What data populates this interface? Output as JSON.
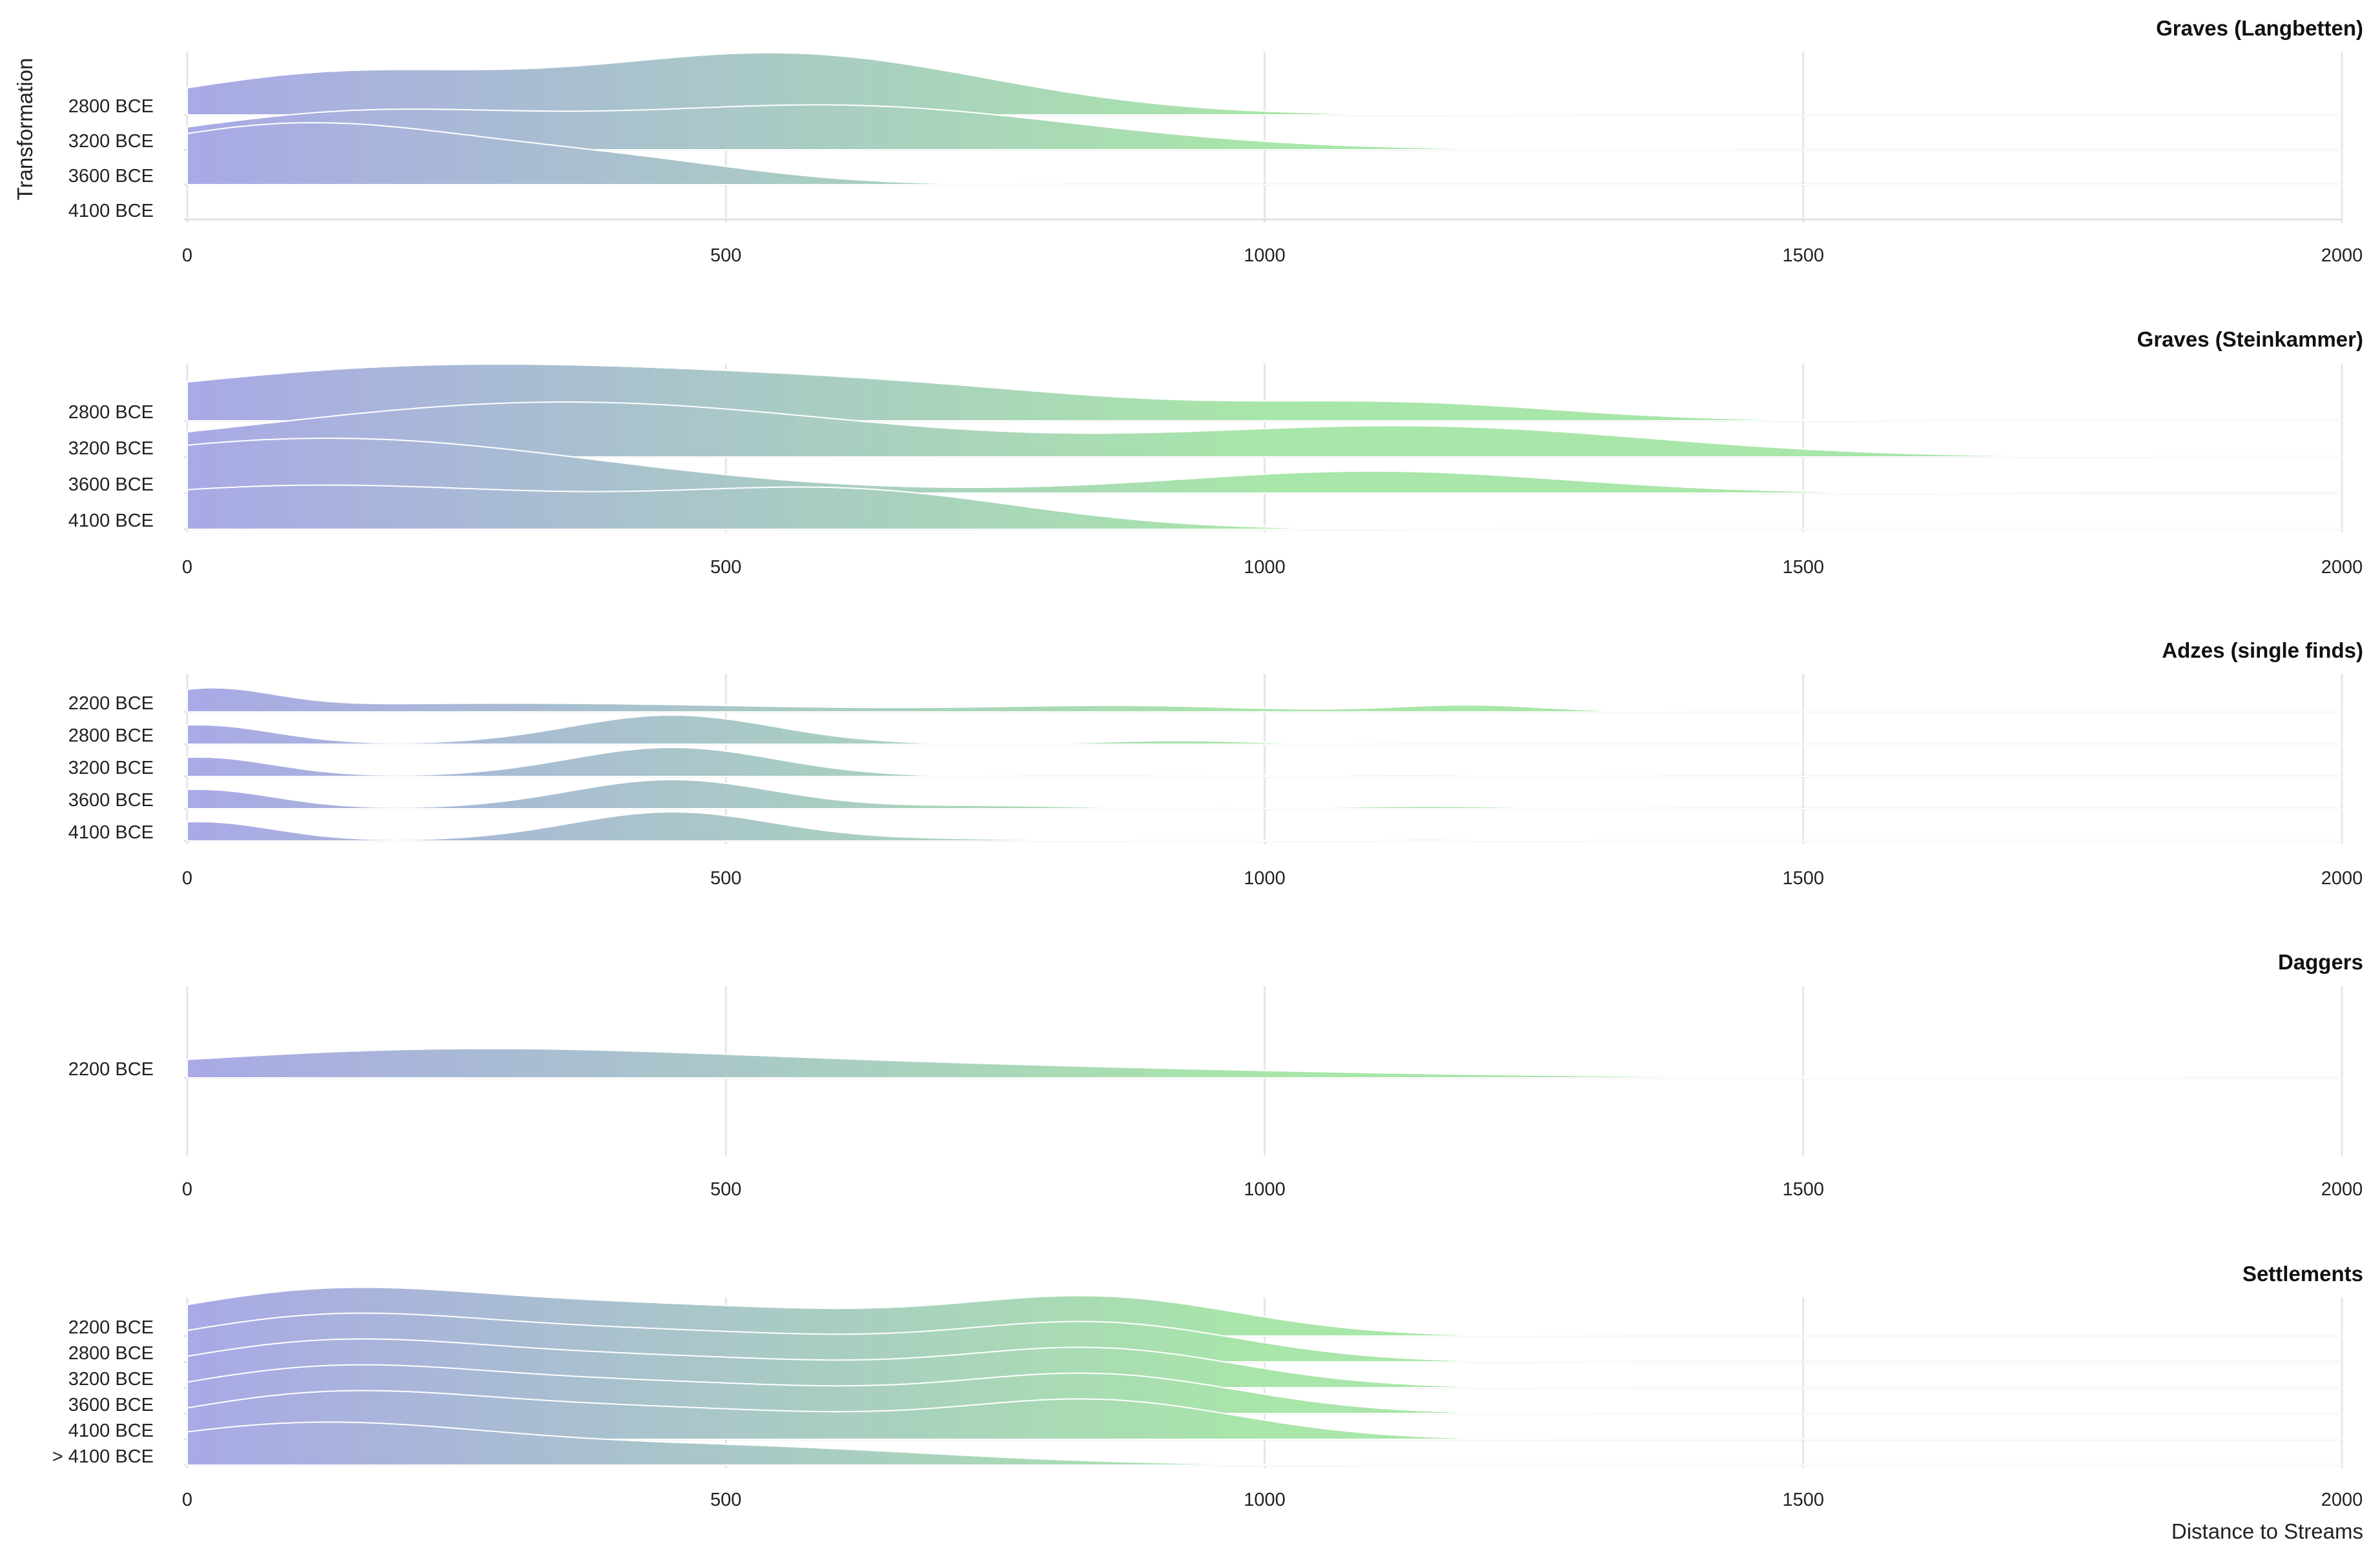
{
  "chart_data": {
    "type": "ridgeline",
    "ylabel": "Transformation",
    "xlabel": "Distance to Streams",
    "xlim": [
      0,
      2000
    ],
    "xticks": [
      0,
      500,
      1000,
      1500,
      2000
    ],
    "gradient": {
      "low": "#a9a9e6",
      "high": "#a9e6a9"
    },
    "panels": [
      {
        "title": "Graves (Langbetten)",
        "series": [
          {
            "name": "2800 BCE",
            "peaks": [
              [
                130,
                150,
                0.62
              ],
              [
                550,
                190,
                1.0
              ]
            ]
          },
          {
            "name": "3200 BCE",
            "peaks": [
              [
                150,
                160,
                0.55
              ],
              [
                600,
                220,
                0.72
              ]
            ]
          },
          {
            "name": "3600 BCE",
            "peaks": [
              [
                110,
                180,
                1.0
              ],
              [
                420,
                120,
                0.25
              ]
            ]
          },
          {
            "name": "4100 BCE",
            "peaks": []
          }
        ]
      },
      {
        "title": "Graves (Steinkammer)",
        "series": [
          {
            "name": "2800 BCE",
            "peaks": [
              [
                250,
                300,
                1.0
              ],
              [
                700,
                200,
                0.35
              ],
              [
                1130,
                150,
                0.3
              ]
            ]
          },
          {
            "name": "3200 BCE",
            "peaks": [
              [
                350,
                280,
                1.0
              ],
              [
                1140,
                220,
                0.55
              ]
            ]
          },
          {
            "name": "3600 BCE",
            "peaks": [
              [
                130,
                250,
                1.0
              ],
              [
                1100,
                180,
                0.4
              ]
            ]
          },
          {
            "name": "4100 BCE",
            "peaks": [
              [
                120,
                260,
                0.8
              ],
              [
                620,
                160,
                0.62
              ]
            ]
          }
        ]
      },
      {
        "title": "Adzes (single finds)",
        "series": [
          {
            "name": "2200 BCE",
            "peaks": [
              [
                20,
                60,
                1.0
              ],
              [
                300,
                250,
                0.45
              ],
              [
                870,
                120,
                0.3
              ],
              [
                1190,
                70,
                0.35
              ]
            ]
          },
          {
            "name": "2800 BCE",
            "peaks": [
              [
                10,
                70,
                1.0
              ],
              [
                450,
                95,
                1.5
              ],
              [
                920,
                70,
                0.18
              ]
            ]
          },
          {
            "name": "3200 BCE",
            "peaks": [
              [
                10,
                70,
                1.0
              ],
              [
                450,
                95,
                1.5
              ],
              [
                1130,
                100,
                0.08
              ]
            ]
          },
          {
            "name": "3600 BCE",
            "peaks": [
              [
                10,
                70,
                1.0
              ],
              [
                450,
                95,
                1.5
              ],
              [
                740,
                90,
                0.15
              ],
              [
                1150,
                80,
                0.12
              ]
            ]
          },
          {
            "name": "4100 BCE",
            "peaks": [
              [
                10,
                70,
                1.0
              ],
              [
                450,
                95,
                1.5
              ],
              [
                700,
                90,
                0.1
              ],
              [
                1150,
                80,
                0.08
              ]
            ]
          }
        ]
      },
      {
        "title": "Daggers",
        "series": [
          {
            "name": "2200 BCE",
            "peaks": [
              [
                220,
                260,
                0.3
              ],
              [
                650,
                350,
                0.15
              ]
            ]
          }
        ]
      },
      {
        "title": "Settlements",
        "series": [
          {
            "name": "2200 BCE",
            "peaks": [
              [
                120,
                150,
                1.0
              ],
              [
                450,
                200,
                0.72
              ],
              [
                850,
                130,
                0.9
              ]
            ]
          },
          {
            "name": "2800 BCE",
            "peaks": [
              [
                120,
                150,
                1.0
              ],
              [
                450,
                200,
                0.72
              ],
              [
                850,
                130,
                0.9
              ]
            ]
          },
          {
            "name": "3200 BCE",
            "peaks": [
              [
                120,
                150,
                1.0
              ],
              [
                450,
                200,
                0.72
              ],
              [
                850,
                130,
                0.9
              ]
            ]
          },
          {
            "name": "3600 BCE",
            "peaks": [
              [
                120,
                150,
                1.0
              ],
              [
                450,
                200,
                0.72
              ],
              [
                850,
                130,
                0.9
              ]
            ]
          },
          {
            "name": "4100 BCE",
            "peaks": [
              [
                120,
                150,
                1.0
              ],
              [
                450,
                200,
                0.72
              ],
              [
                850,
                130,
                0.9
              ]
            ]
          },
          {
            "name": "> 4100 BCE",
            "peaks": [
              [
                110,
                170,
                1.0
              ],
              [
                500,
                200,
                0.45
              ]
            ]
          }
        ]
      }
    ]
  }
}
